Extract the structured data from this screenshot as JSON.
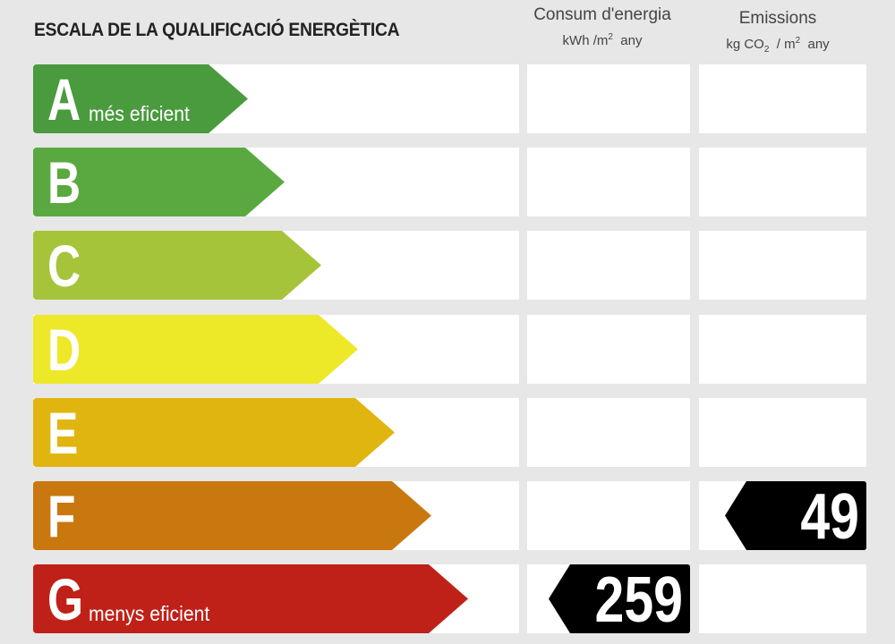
{
  "header": {
    "title": "ESCALA DE LA QUALIFICACIÓ ENERGÈTICA",
    "energy": {
      "title": "Consum d'energia",
      "unit_main": "kWh /m",
      "unit_sup": "2",
      "unit_tail": "any"
    },
    "emissions": {
      "title": "Emissions",
      "unit_a": "kg CO",
      "unit_sub": "2",
      "unit_b": "/ m",
      "unit_sup": "2",
      "unit_tail": "any"
    }
  },
  "classes": [
    {
      "letter": "A",
      "sub": "més eficient",
      "color": "#4a9a3e"
    },
    {
      "letter": "B",
      "sub": "",
      "color": "#5aa940"
    },
    {
      "letter": "C",
      "sub": "",
      "color": "#a6c43a"
    },
    {
      "letter": "D",
      "sub": "",
      "color": "#ede828"
    },
    {
      "letter": "E",
      "sub": "",
      "color": "#e1b50f"
    },
    {
      "letter": "F",
      "sub": "",
      "color": "#c9780f"
    },
    {
      "letter": "G",
      "sub": "menys eficient",
      "color": "#bf2119"
    }
  ],
  "ratings": {
    "energy": {
      "class": "G",
      "value": "259"
    },
    "emissions": {
      "class": "F",
      "value": "49"
    }
  }
}
